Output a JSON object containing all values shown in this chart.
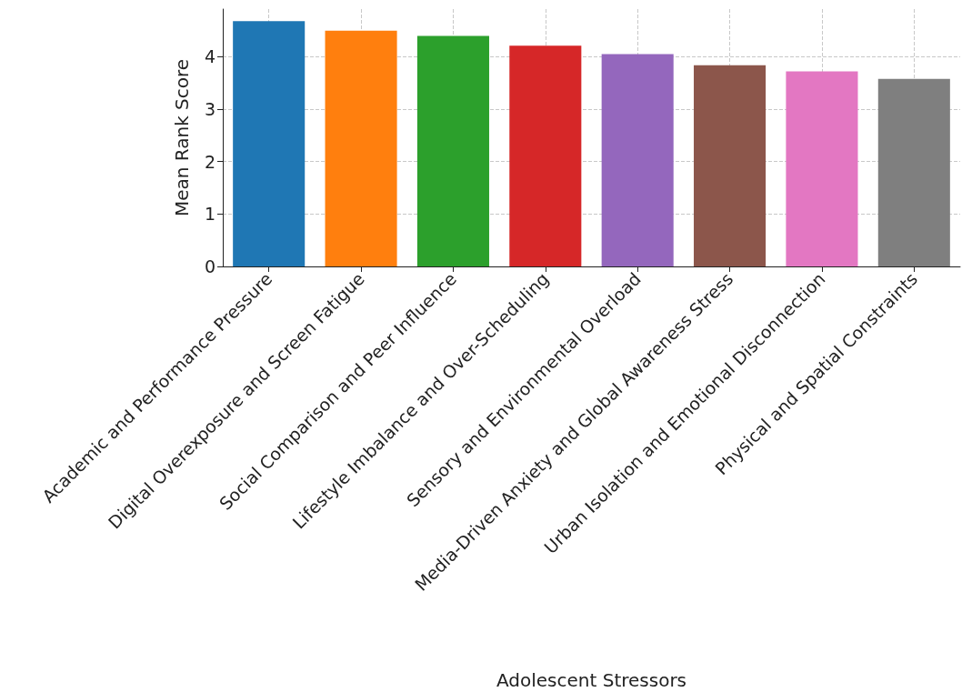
{
  "chart_data": {
    "type": "bar",
    "xlabel": "Adolescent Stressors",
    "ylabel": "Mean Rank Score",
    "categories": [
      "Academic and Performance Pressure",
      "Digital Overexposure and Screen Fatigue",
      "Social Comparison and Peer Influence",
      "Lifestyle Imbalance and Over-Scheduling",
      "Sensory and Environmental Overload",
      "Media-Driven Anxiety and Global Awareness Stress",
      "Urban Isolation and Emotional Disconnection",
      "Physical and Spatial Constraints"
    ],
    "values": [
      4.68,
      4.5,
      4.4,
      4.21,
      4.05,
      3.84,
      3.72,
      3.58
    ],
    "colors": [
      "#1f77b4",
      "#ff7f0e",
      "#2ca02c",
      "#d62728",
      "#9467bd",
      "#8c564b",
      "#e377c2",
      "#7f7f7f"
    ],
    "ylim": [
      0,
      4.91
    ],
    "yticks": [
      0,
      1,
      2,
      3,
      4
    ],
    "grid": true
  }
}
